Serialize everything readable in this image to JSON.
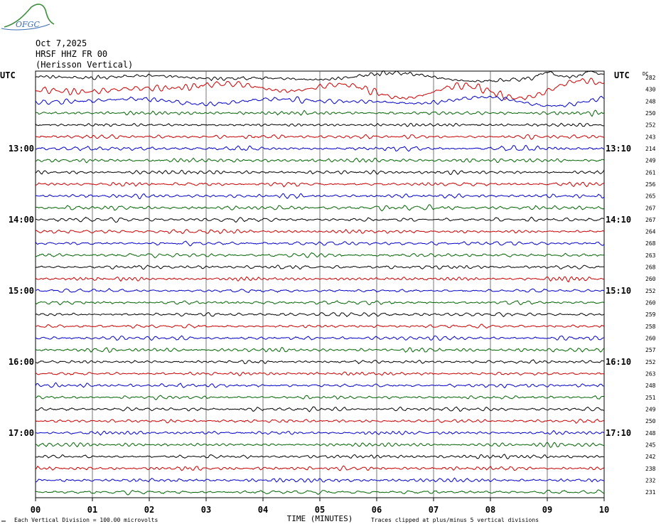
{
  "logo": {
    "text": "OFGC",
    "leaf_color": "#3c8f3c",
    "text_color": "#3a6fb5"
  },
  "header": {
    "date": "Oct 7,2025",
    "station": "HRSF HHZ FR 00",
    "location": "(Herisson Vertical)"
  },
  "chart_data": {
    "type": "line",
    "chart_kind": "helicorder",
    "left_axis_label": "UTC",
    "right_axis_label": "UTC",
    "dc_label": "DC",
    "left_hour_labels": [
      "13:00",
      "14:00",
      "15:00",
      "16:00",
      "17:00"
    ],
    "right_time_labels": [
      "13:10",
      "14:10",
      "15:10",
      "16:10",
      "17:10"
    ],
    "hour_label_rows": [
      6,
      12,
      18,
      24,
      30
    ],
    "x_tick_labels": [
      "00",
      "01",
      "02",
      "03",
      "04",
      "05",
      "06",
      "07",
      "08",
      "09",
      "10"
    ],
    "xlabel": "TIME (MINUTES)",
    "x_range_minutes": [
      0,
      10
    ],
    "row_minutes": 10,
    "trace_colors": [
      "#000000",
      "#cc0000",
      "#0000cc",
      "#006600"
    ],
    "dc_offsets": [
      282,
      430,
      248,
      250,
      252,
      243,
      214,
      249,
      261,
      256,
      265,
      267,
      267,
      264,
      268,
      263,
      268,
      260,
      252,
      260,
      259,
      258,
      260,
      257,
      252,
      263,
      248,
      251,
      249,
      250,
      248,
      245,
      242,
      238,
      232,
      231
    ],
    "footer_scale": "Each Vertical Division =  100.00 microvolts",
    "footer_clip": "Traces clipped at plus/minus 5 vertical divisions",
    "grid": true
  }
}
